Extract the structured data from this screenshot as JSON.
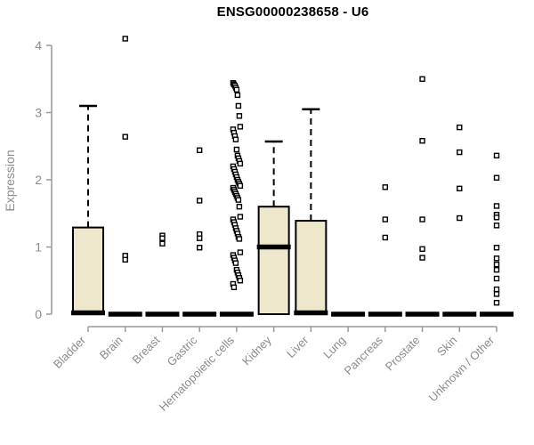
{
  "title": "ENSG00000238658 - U6",
  "colors": {
    "box_fill": "#EDE7CB",
    "box_stroke": "#000000",
    "axis": "#999999",
    "tick_label": "#8c8c8c",
    "title_color": "#000000"
  },
  "chart_data": {
    "type": "boxplot",
    "title": "ENSG00000238658 - U6",
    "xlabel": "",
    "ylabel": "Expression",
    "ylim": [
      0,
      4.2
    ],
    "yticks": [
      0,
      1,
      2,
      3,
      4
    ],
    "grid": false,
    "legend": false,
    "categories": [
      "Bladder",
      "Brain",
      "Breast",
      "Gastric",
      "Hematopoietic cells",
      "Kidney",
      "Liver",
      "Lung",
      "Pancreas",
      "Prostate",
      "Skin",
      "Unknown / Other"
    ],
    "boxes": [
      {
        "category": "Bladder",
        "q1": 0,
        "median": 0.02,
        "q3": 1.29,
        "whisker_low": 0,
        "whisker_high": 3.1,
        "outliers": []
      },
      {
        "category": "Brain",
        "q1": 0,
        "median": 0,
        "q3": 0,
        "whisker_low": 0,
        "whisker_high": 0,
        "outliers": [
          4.1,
          2.64,
          0.87,
          0.81
        ]
      },
      {
        "category": "Breast",
        "q1": 0,
        "median": 0,
        "q3": 0,
        "whisker_low": 0,
        "whisker_high": 0,
        "outliers": [
          1.17,
          1.13,
          1.05
        ]
      },
      {
        "category": "Gastric",
        "q1": 0,
        "median": 0,
        "q3": 0,
        "whisker_low": 0,
        "whisker_high": 0,
        "outliers": [
          2.44,
          1.69,
          1.19,
          1.13,
          0.99
        ]
      },
      {
        "category": "Hematopoietic cells",
        "q1": 0,
        "median": 0,
        "q3": 0,
        "whisker_low": 0,
        "whisker_high": 0,
        "outliers": [
          3.44,
          3.42,
          3.4,
          3.37,
          3.34,
          3.26,
          3.1,
          2.95,
          2.79,
          2.75,
          2.7,
          2.65,
          2.6,
          2.45,
          2.36,
          2.32,
          2.28,
          2.24,
          2.2,
          2.16,
          2.12,
          2.08,
          2.04,
          2.0,
          1.97,
          1.94,
          1.91,
          1.88,
          1.85,
          1.82,
          1.79,
          1.76,
          1.73,
          1.7,
          1.6,
          1.45,
          1.41,
          1.37,
          1.33,
          1.28,
          1.24,
          1.2,
          1.15,
          1.12,
          0.92,
          0.88,
          0.84,
          0.8,
          0.76,
          0.66,
          0.62,
          0.58,
          0.54,
          0.5,
          0.45,
          0.4
        ]
      },
      {
        "category": "Kidney",
        "q1": 0,
        "median": 1.0,
        "q3": 1.6,
        "whisker_low": 0,
        "whisker_high": 2.57,
        "outliers": []
      },
      {
        "category": "Liver",
        "q1": 0,
        "median": 0.02,
        "q3": 1.39,
        "whisker_low": 0,
        "whisker_high": 3.05,
        "outliers": []
      },
      {
        "category": "Lung",
        "q1": 0,
        "median": 0,
        "q3": 0,
        "whisker_low": 0,
        "whisker_high": 0,
        "outliers": []
      },
      {
        "category": "Pancreas",
        "q1": 0,
        "median": 0,
        "q3": 0,
        "whisker_low": 0,
        "whisker_high": 0,
        "outliers": [
          1.89,
          1.41,
          1.14
        ]
      },
      {
        "category": "Prostate",
        "q1": 0,
        "median": 0,
        "q3": 0,
        "whisker_low": 0,
        "whisker_high": 0,
        "outliers": [
          3.5,
          2.58,
          1.41,
          0.97,
          0.84
        ]
      },
      {
        "category": "Skin",
        "q1": 0,
        "median": 0,
        "q3": 0,
        "whisker_low": 0,
        "whisker_high": 0,
        "outliers": [
          2.78,
          2.41,
          1.87,
          1.43
        ]
      },
      {
        "category": "Unknown / Other",
        "q1": 0,
        "median": 0,
        "q3": 0,
        "whisker_low": 0,
        "whisker_high": 0,
        "outliers": [
          2.36,
          2.03,
          1.61,
          1.48,
          1.44,
          1.32,
          0.99,
          0.83,
          0.74,
          0.66,
          0.53,
          0.37,
          0.3,
          0.17
        ]
      }
    ]
  }
}
